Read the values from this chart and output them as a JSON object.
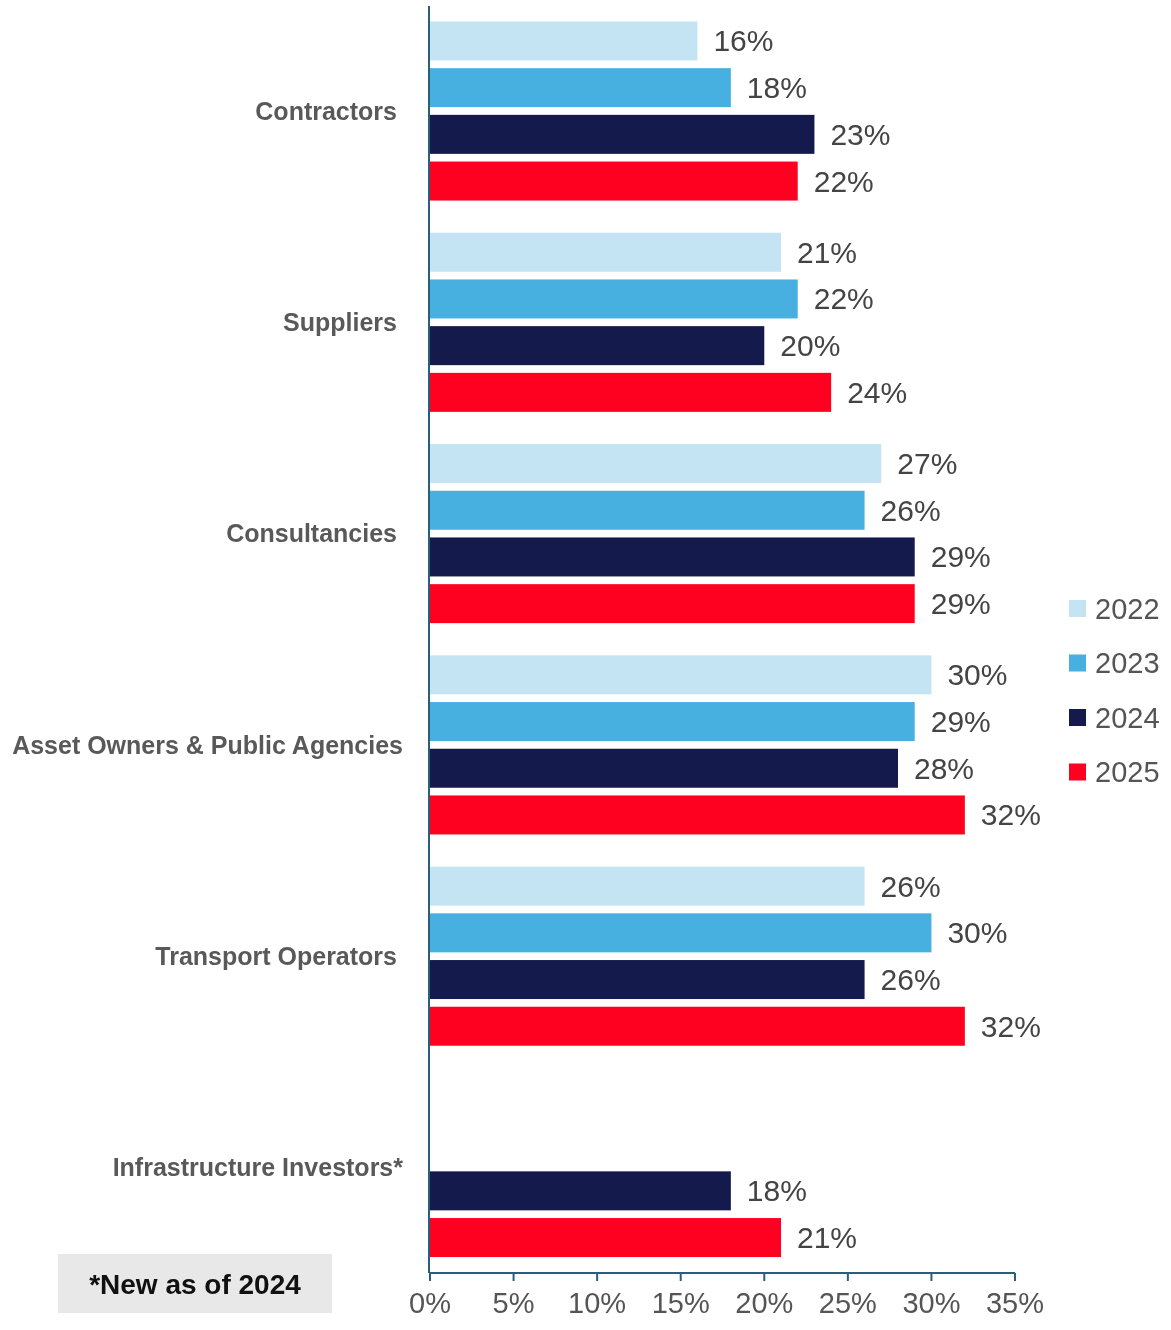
{
  "chart_data": {
    "type": "bar",
    "orientation": "horizontal",
    "categories": [
      "Contractors",
      "Suppliers",
      "Consultancies",
      "Asset Owners & Public Agencies",
      "Transport Operators",
      "Infrastructure Investors*"
    ],
    "series": [
      {
        "name": "2022",
        "color": "#c5e4f3",
        "values": [
          16,
          21,
          27,
          30,
          26,
          null
        ],
        "value_labels": [
          "16%",
          "21%",
          "27%",
          "30%",
          "26%",
          null
        ]
      },
      {
        "name": "2023",
        "color": "#47b0e0",
        "values": [
          18,
          22,
          26,
          29,
          30,
          null
        ],
        "value_labels": [
          "18%",
          "22%",
          "26%",
          "29%",
          "30%",
          null
        ]
      },
      {
        "name": "2024",
        "color": "#141a4b",
        "values": [
          23,
          20,
          29,
          28,
          26,
          18
        ],
        "value_labels": [
          "23%",
          "20%",
          "29%",
          "28%",
          "26%",
          "18%"
        ]
      },
      {
        "name": "2025",
        "color": "#fe0020",
        "values": [
          22,
          24,
          29,
          32,
          32,
          21
        ],
        "value_labels": [
          "22%",
          "24%",
          "29%",
          "32%",
          "32%",
          "21%"
        ]
      }
    ],
    "xlim": [
      0,
      35
    ],
    "xticks": [
      {
        "value": 0,
        "label": "0%"
      },
      {
        "value": 5,
        "label": "5%"
      },
      {
        "value": 10,
        "label": "10%"
      },
      {
        "value": 15,
        "label": "15%"
      },
      {
        "value": 20,
        "label": "20%"
      },
      {
        "value": 25,
        "label": "25%"
      },
      {
        "value": 30,
        "label": "30%"
      },
      {
        "value": 35,
        "label": "35%"
      }
    ],
    "grid": false,
    "legend": "right",
    "annotations": [
      "*New as of 2024"
    ]
  }
}
